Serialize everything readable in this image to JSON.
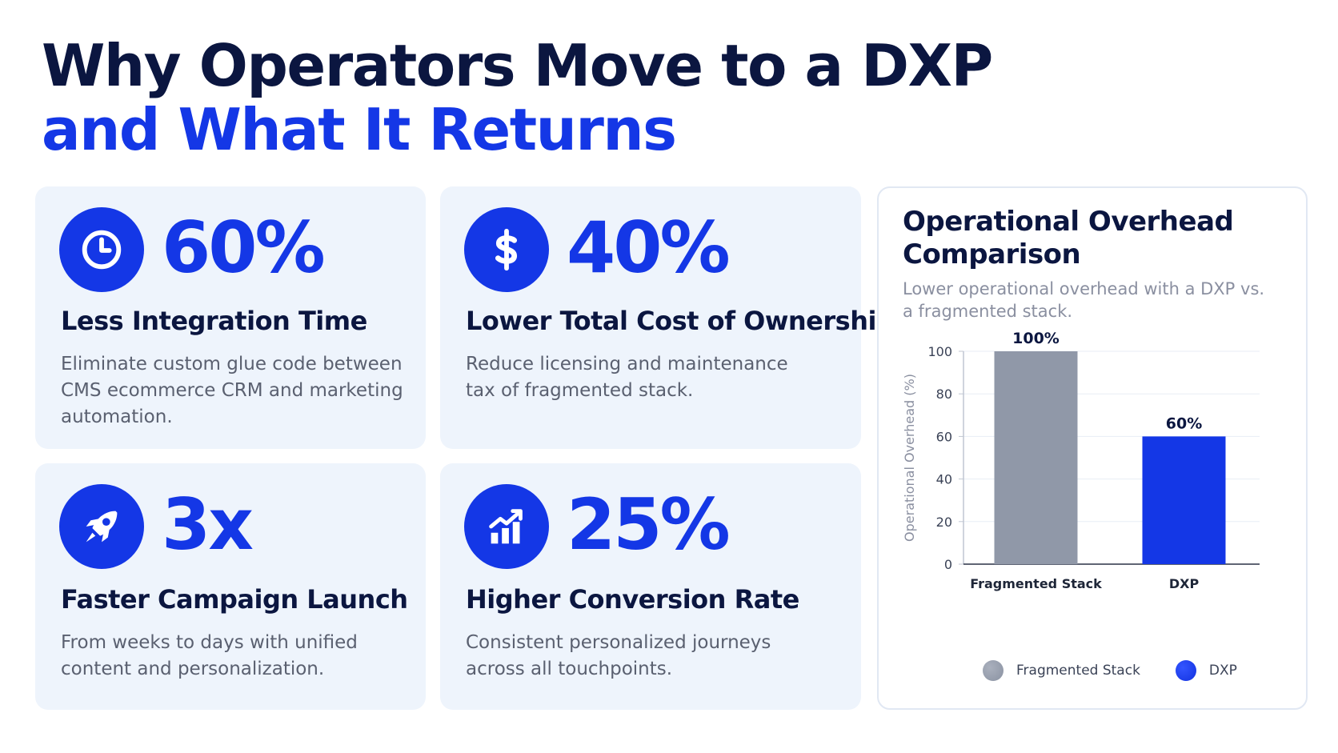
{
  "title": {
    "line1": "Why Operators Move to a DXP",
    "line2": "and What It Returns"
  },
  "cards": [
    {
      "icon": "clock-icon",
      "stat": "60%",
      "title": "Less Integration Time",
      "desc": "Eliminate custom glue code between CMS ecommerce CRM and marketing automation."
    },
    {
      "icon": "dollar-icon",
      "stat": "40%",
      "title": "Lower Total Cost of Ownership",
      "desc": "Reduce licensing and maintenance tax of fragmented stack."
    },
    {
      "icon": "rocket-icon",
      "stat": "3x",
      "title": "Faster Campaign Launch",
      "desc": "From weeks to days with unified content and personalization."
    },
    {
      "icon": "growth-chart-icon",
      "stat": "25%",
      "title": "Higher Conversion Rate",
      "desc": "Consistent personalized journeys across all touchpoints."
    }
  ],
  "colors": {
    "accent": "#1437e6",
    "navy": "#0b1640",
    "gray_bar": "#9098a8",
    "card_bg": "#eef4fc"
  },
  "chart_data": {
    "type": "bar",
    "title": "Operational Overhead Comparison",
    "subtitle": "Lower operational overhead with a DXP vs. a fragmented stack.",
    "categories": [
      "Fragmented Stack",
      "DXP"
    ],
    "values": [
      100,
      60
    ],
    "data_labels": [
      "100%",
      "60%"
    ],
    "bar_colors": [
      "#9098a8",
      "#1437e6"
    ],
    "xlabel": "",
    "ylabel": "Operational Overhead (%)",
    "ylim": [
      0,
      100
    ],
    "yticks": [
      0,
      20,
      40,
      60,
      80,
      100
    ],
    "grid": true,
    "legend": {
      "placement": "bottom",
      "entries": [
        {
          "name": "Fragmented Stack",
          "color": "#9098a8"
        },
        {
          "name": "DXP",
          "color": "#1437e6"
        }
      ]
    }
  }
}
